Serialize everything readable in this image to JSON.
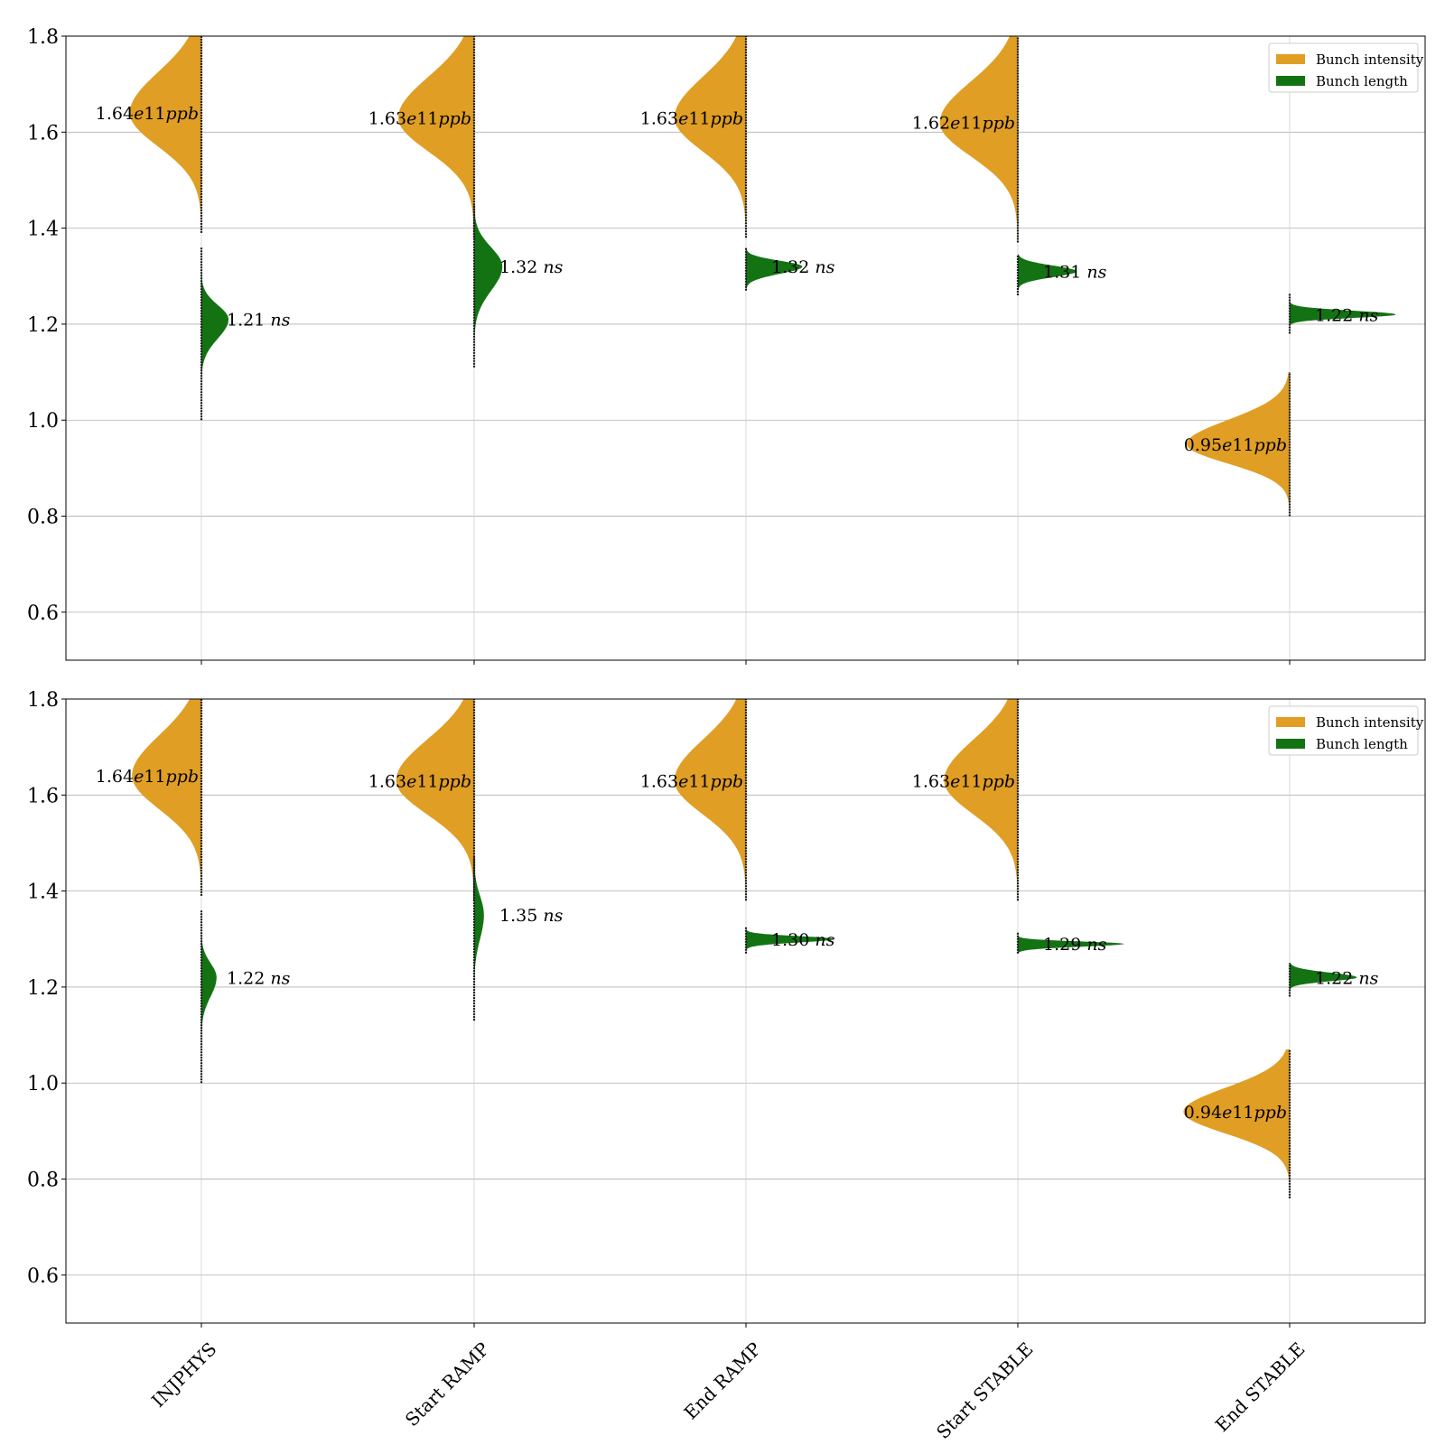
{
  "chart_data": {
    "type": "violin",
    "categories": [
      "INJPHYS",
      "Start RAMP",
      "End RAMP",
      "Start STABLE",
      "End STABLE"
    ],
    "ylim": [
      0.5,
      1.8
    ],
    "yticks": [
      "0.6",
      "0.8",
      "1.0",
      "1.2",
      "1.4",
      "1.6",
      "1.8"
    ],
    "grid": "horizontal",
    "legend_position": "top-right",
    "colors": {
      "Bunch intensity": "#E09E24",
      "Bunch length": "#137313"
    },
    "panels": [
      {
        "legend": [
          "Bunch intensity",
          "Bunch length"
        ],
        "series": [
          {
            "name": "Bunch intensity",
            "side": "left",
            "values": [
              1.64,
              1.63,
              1.63,
              1.62,
              0.95
            ],
            "labels": [
              "1.64",
              "1.63",
              "1.63",
              "1.62",
              "0.95"
            ],
            "unit_prefix": "e",
            "unit_exp": "11",
            "unit_suffix": "ppb",
            "range": [
              [
                1.39,
                1.8
              ],
              [
                1.38,
                1.8
              ],
              [
                1.38,
                1.8
              ],
              [
                1.37,
                1.8
              ],
              [
                0.8,
                1.1
              ]
            ]
          },
          {
            "name": "Bunch length",
            "side": "right",
            "values": [
              1.21,
              1.32,
              1.32,
              1.31,
              1.22
            ],
            "labels": [
              "1.21",
              "1.32",
              "1.32",
              "1.31",
              "1.22"
            ],
            "unit": "ns",
            "range": [
              [
                1.0,
                1.36
              ],
              [
                1.11,
                1.45
              ],
              [
                1.27,
                1.36
              ],
              [
                1.26,
                1.345
              ],
              [
                1.18,
                1.265
              ]
            ]
          }
        ]
      },
      {
        "legend": [
          "Bunch intensity",
          "Bunch length"
        ],
        "series": [
          {
            "name": "Bunch intensity",
            "side": "left",
            "values": [
              1.64,
              1.63,
              1.63,
              1.63,
              0.94
            ],
            "labels": [
              "1.64",
              "1.63",
              "1.63",
              "1.63",
              "0.94"
            ],
            "unit_prefix": "e",
            "unit_exp": "11",
            "unit_suffix": "ppb",
            "range": [
              [
                1.39,
                1.8
              ],
              [
                1.38,
                1.8
              ],
              [
                1.38,
                1.8
              ],
              [
                1.38,
                1.8
              ],
              [
                0.76,
                1.07
              ]
            ]
          },
          {
            "name": "Bunch length",
            "side": "right",
            "values": [
              1.22,
              1.35,
              1.3,
              1.29,
              1.22
            ],
            "labels": [
              "1.22",
              "1.35",
              "1.30",
              "1.29",
              "1.22"
            ],
            "unit": "ns",
            "range": [
              [
                1.0,
                1.36
              ],
              [
                1.13,
                1.47
              ],
              [
                1.27,
                1.325
              ],
              [
                1.27,
                1.315
              ],
              [
                1.18,
                1.25
              ]
            ]
          }
        ]
      }
    ]
  }
}
